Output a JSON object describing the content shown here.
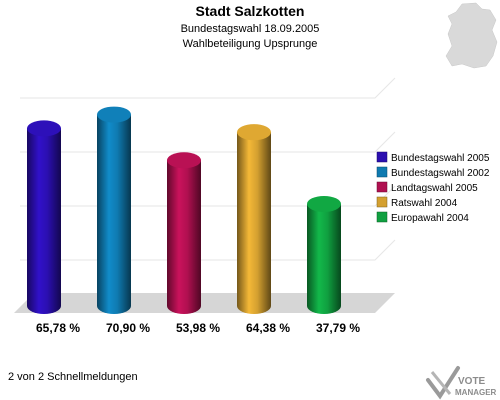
{
  "chart_data": {
    "type": "bar",
    "title": "Stadt Salzkotten",
    "subtitle_1": "Bundestagswahl 18.09.2005",
    "subtitle_2": "Wahlbeteiligung Upsprunge",
    "categories": [
      "Bundestagswahl 2005",
      "Bundestagswahl 2002",
      "Landtagswahl 2005",
      "Ratswahl 2004",
      "Europawahl 2004"
    ],
    "values": [
      65.78,
      70.9,
      53.98,
      64.38,
      37.79
    ],
    "value_labels": [
      "65,78 %",
      "70,90 %",
      "53,98 %",
      "64,38 %",
      "37,79 %"
    ],
    "colors": [
      "#2b0fb0",
      "#0f7ab0",
      "#b01050",
      "#d4a030",
      "#10a040"
    ],
    "ylim": [
      0,
      100
    ],
    "legend_position": "right",
    "grid": true
  },
  "footer": {
    "text": "2 von 2 Schnellmeldungen"
  },
  "logo": {
    "line1": "VOTE",
    "line2": "MANAGER"
  }
}
